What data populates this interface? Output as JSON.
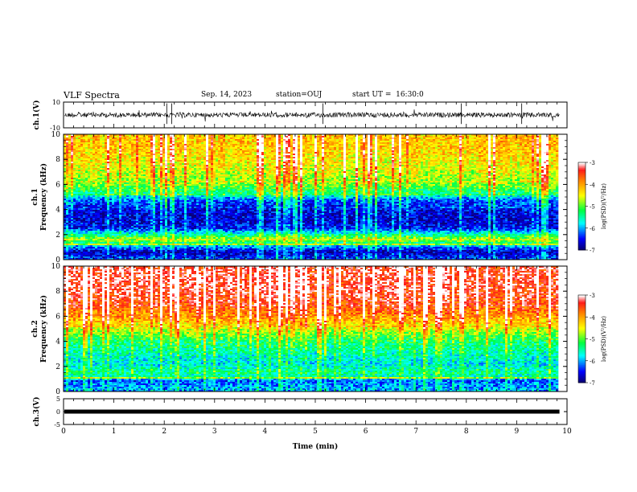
{
  "header": {
    "title": "VLF Spectra",
    "date": "Sep. 14, 2023",
    "station": "station=OUJ",
    "start": "start UT =  16:30:0"
  },
  "chart_data": [
    {
      "type": "line",
      "panel": "waveform-ch1",
      "ylabel": "ch.1(V)",
      "ylim": [
        -10,
        10
      ],
      "yticks": [
        "10",
        "-10"
      ],
      "x_range": [
        0,
        9.85
      ],
      "baseline": 0,
      "spikes_min": [
        2.05,
        2.15,
        5.15,
        7.9,
        9.1
      ],
      "color": "#000000"
    },
    {
      "type": "heatmap",
      "panel": "spectrogram-ch1",
      "ylabel": "ch.1\nFrequency (kHz)",
      "ylabel_line1": "ch.1",
      "ylabel_line2": "Frequency (kHz)",
      "ylim": [
        0,
        10
      ],
      "yticks": [
        "0",
        "2",
        "4",
        "6",
        "8",
        "10"
      ],
      "x_range": [
        0,
        9.85
      ],
      "colorbar": {
        "label": "log(PSD)(V²/Hz)",
        "range": [
          -7,
          -3
        ],
        "ticks": [
          "-3",
          "-4",
          "-5",
          "-6",
          "-7"
        ]
      },
      "profile_log_psd": [
        {
          "f": 0,
          "v": -6.3
        },
        {
          "f": 0.6,
          "v": -6.8
        },
        {
          "f": 1.2,
          "v": -5.8
        },
        {
          "f": 1.6,
          "v": -4.7
        },
        {
          "f": 2.0,
          "v": -5.5
        },
        {
          "f": 2.5,
          "v": -6.5
        },
        {
          "f": 3.2,
          "v": -6.7
        },
        {
          "f": 4.0,
          "v": -6.6
        },
        {
          "f": 4.8,
          "v": -6.2
        },
        {
          "f": 5.3,
          "v": -5.4
        },
        {
          "f": 6.0,
          "v": -4.9
        },
        {
          "f": 7.0,
          "v": -4.6
        },
        {
          "f": 8.0,
          "v": -4.4
        },
        {
          "f": 9.0,
          "v": -4.2
        },
        {
          "f": 10,
          "v": -4.2
        }
      ]
    },
    {
      "type": "heatmap",
      "panel": "spectrogram-ch2",
      "ylabel": "ch.2\nFrequency (kHz)",
      "ylabel_line1": "ch.2",
      "ylabel_line2": "Frequency (kHz)",
      "ylim": [
        0,
        10
      ],
      "yticks": [
        "0",
        "2",
        "4",
        "6",
        "8",
        "10"
      ],
      "x_range": [
        0,
        9.85
      ],
      "colorbar": {
        "label": "log(PSD)(V²/Hz)",
        "range": [
          -7,
          -3
        ],
        "ticks": [
          "-3",
          "-4",
          "-5",
          "-6",
          "-7"
        ]
      },
      "profile_log_psd": [
        {
          "f": 0,
          "v": -6.0
        },
        {
          "f": 0.8,
          "v": -6.2
        },
        {
          "f": 1.5,
          "v": -5.4
        },
        {
          "f": 2.2,
          "v": -5.8
        },
        {
          "f": 3.0,
          "v": -5.6
        },
        {
          "f": 4.0,
          "v": -5.3
        },
        {
          "f": 5.0,
          "v": -4.6
        },
        {
          "f": 6.0,
          "v": -3.9
        },
        {
          "f": 7.0,
          "v": -3.5
        },
        {
          "f": 8.0,
          "v": -3.3
        },
        {
          "f": 9.0,
          "v": -3.25
        },
        {
          "f": 10,
          "v": -3.3
        }
      ]
    },
    {
      "type": "line",
      "panel": "waveform-ch3",
      "ylabel": "ch.3(V)",
      "ylim": [
        -5,
        5
      ],
      "yticks": [
        "5",
        "0",
        "-5"
      ],
      "x_range": [
        0,
        9.85
      ],
      "baseline": 0,
      "color": "#000000"
    }
  ],
  "xaxis": {
    "label": "Time (min)",
    "xlim": [
      0,
      10
    ],
    "ticks": [
      "0",
      "1",
      "2",
      "3",
      "4",
      "5",
      "6",
      "7",
      "8",
      "9",
      "10"
    ]
  },
  "colors": {
    "colormap": [
      "#08007a",
      "#0000ff",
      "#00ffff",
      "#00ff40",
      "#ffff00",
      "#ff8000",
      "#ff1a1a",
      "#ffffff"
    ]
  }
}
